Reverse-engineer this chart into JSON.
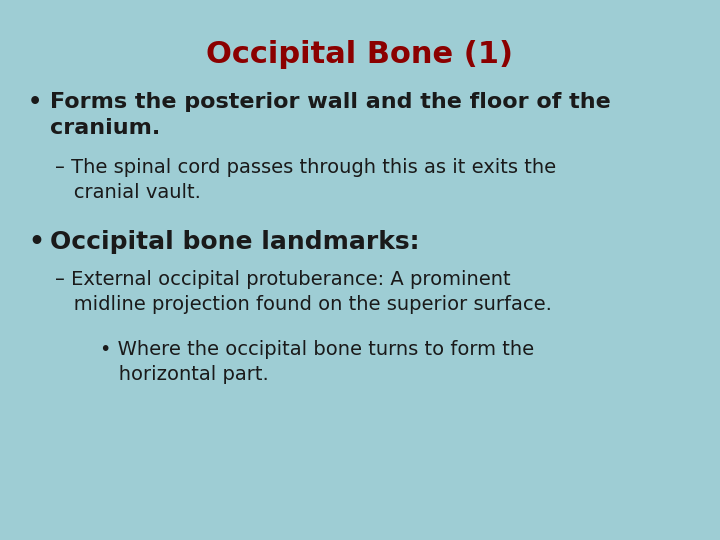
{
  "title": "Occipital Bone (1)",
  "title_color": "#8B0000",
  "title_fontsize": 22,
  "background_color": "#9ECDD4",
  "text_color": "#1a1a1a",
  "bullet1_bullet": "•",
  "bullet1_text": "Forms the posterior wall and the floor of the\ncranium.",
  "bullet1_fontsize": 16,
  "sub1_text": "– The spinal cord passes through this as it exits the\n   cranial vault.",
  "sub1_fontsize": 14,
  "bullet2_bullet": "•",
  "bullet2_text": "Occipital bone landmarks:",
  "bullet2_fontsize": 18,
  "sub2_text": "– External occipital protuberance: A prominent\n   midline projection found on the superior surface.",
  "sub2_fontsize": 14,
  "sub3_text": "• Where the occipital bone turns to form the\n   horizontal part.",
  "sub3_fontsize": 14,
  "fig_width": 7.2,
  "fig_height": 5.4,
  "dpi": 100
}
